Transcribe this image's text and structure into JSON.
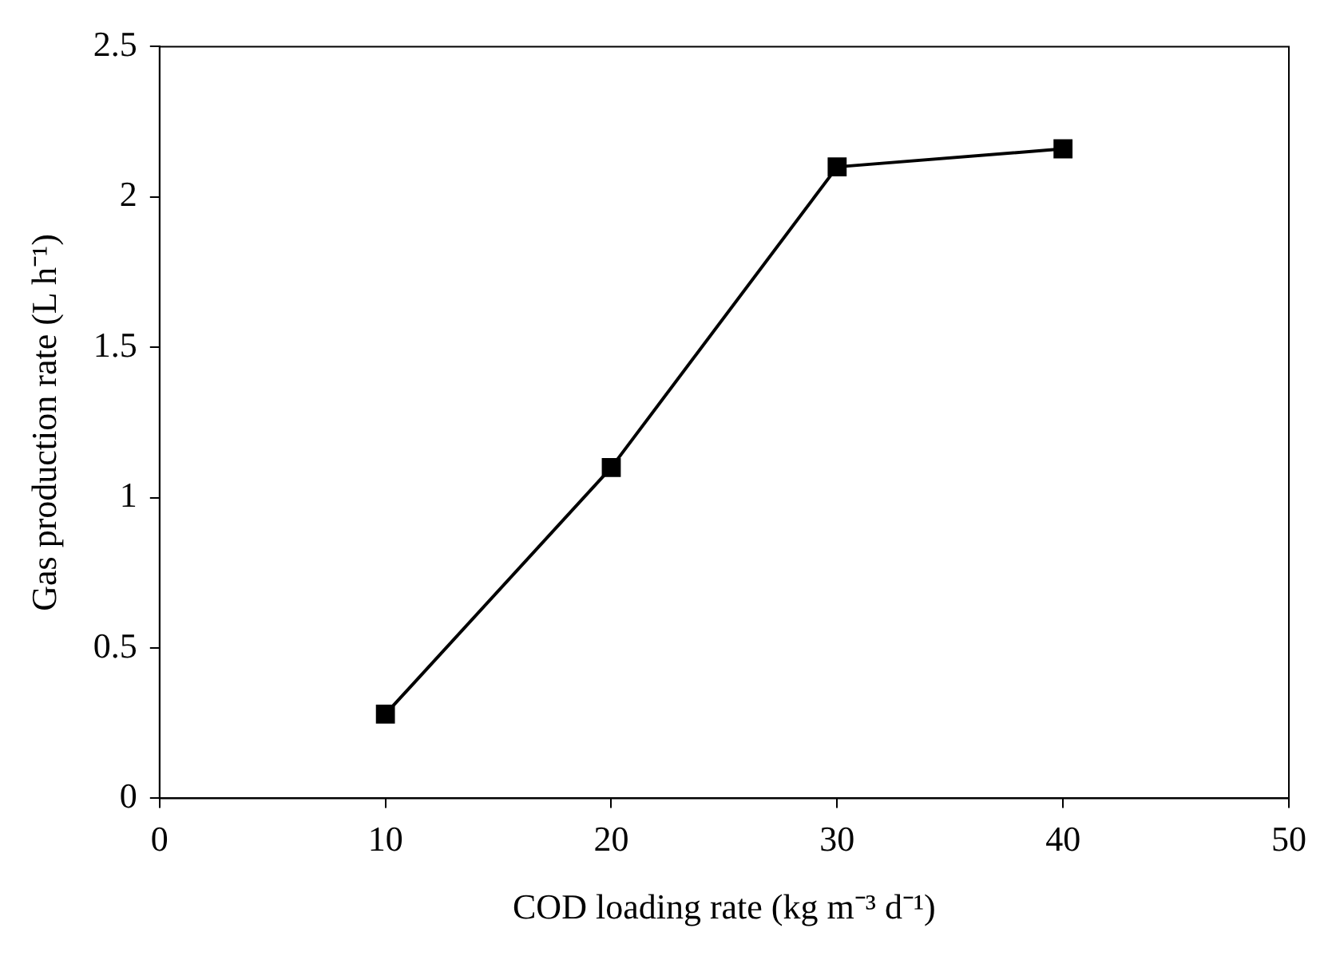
{
  "chart_data": {
    "type": "line",
    "xlabel": "COD loading rate (kg m⁻³ d⁻¹)",
    "ylabel": "Gas production rate (L h⁻¹)",
    "x": [
      10,
      20,
      30,
      40
    ],
    "series": [
      {
        "color": "#000000",
        "values": [
          0.28,
          1.1,
          2.1,
          2.16
        ]
      }
    ],
    "xlim": [
      0,
      50
    ],
    "xticks": [
      0,
      10,
      20,
      30,
      40,
      50
    ],
    "ylim": [
      0,
      2.5
    ],
    "yticks": [
      0,
      0.5,
      1,
      1.5,
      2,
      2.5
    ],
    "grid": false,
    "legend": false,
    "marker": "square",
    "line_style": "solid"
  }
}
